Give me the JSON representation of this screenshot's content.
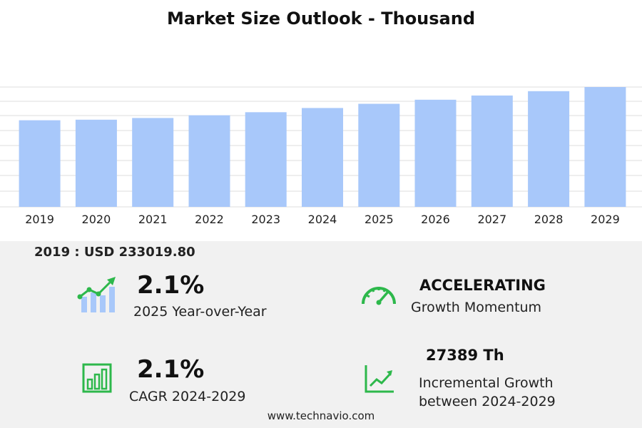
{
  "title": "Market Size Outlook  - Thousand",
  "chart_data": {
    "type": "bar",
    "categories": [
      "2019",
      "2020",
      "2021",
      "2022",
      "2023",
      "2024",
      "2025",
      "2026",
      "2027",
      "2028",
      "2029"
    ],
    "values": [
      233019.8,
      233800,
      236000,
      239500,
      243500,
      249000,
      254500,
      259800,
      265300,
      271000,
      276400
    ],
    "ylim": [
      0,
      276400
    ],
    "grid": true,
    "bar_color": "#a8c8fa"
  },
  "base_year": {
    "label": "2019 : USD  233019.80"
  },
  "stats": {
    "yoy": {
      "value": "2.1%",
      "label": "2025 Year-over-Year"
    },
    "momentum": {
      "value": "ACCELERATING",
      "label": "Growth Momentum"
    },
    "cagr": {
      "value": "2.1%",
      "label": "CAGR 2024-2029"
    },
    "incremental": {
      "value": "27389 Th",
      "label_line1": "Incremental Growth",
      "label_line2": "between 2024-2029"
    }
  },
  "footer": "www.technavio.com",
  "colors": {
    "icon_green": "#2db84b",
    "icon_blue": "#a8c8fa"
  }
}
